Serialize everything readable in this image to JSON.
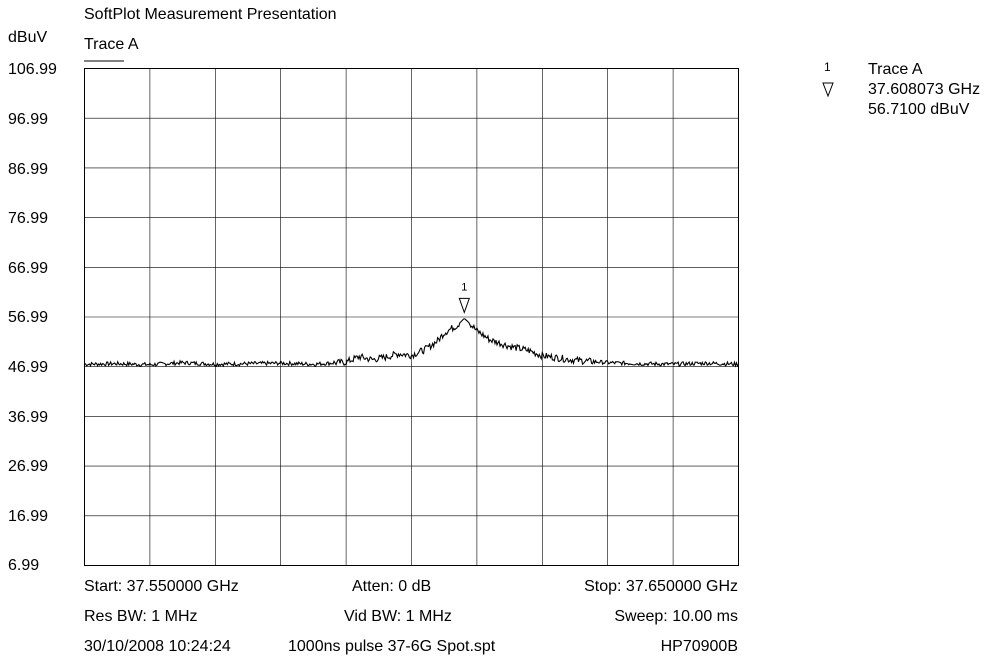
{
  "header": {
    "title": "SoftPlot Measurement Presentation",
    "trace_label": "Trace A",
    "y_unit": "dBuV"
  },
  "marker_panel": {
    "number": "1",
    "trace": "Trace A",
    "frequency": "37.608073 GHz",
    "level": "56.7100 dBuV"
  },
  "footer": {
    "start": "Start: 37.550000 GHz",
    "atten": "Atten: 0 dB",
    "stop": "Stop: 37.650000 GHz",
    "res_bw": "Res BW: 1 MHz",
    "vid_bw": "Vid BW: 1 MHz",
    "sweep": "Sweep: 10.00 ms",
    "datetime": "30/10/2008 10:24:24",
    "file": "1000ns pulse 37-6G Spot.spt",
    "instrument": "HP70900B"
  },
  "chart_data": {
    "type": "line",
    "title": "SoftPlot Measurement Presentation",
    "xlabel": "",
    "ylabel": "dBuV",
    "xlim": [
      37.55,
      37.65
    ],
    "ylim": [
      6.99,
      106.99
    ],
    "grid": true,
    "ytick_labels": [
      "106.99",
      "96.99",
      "86.99",
      "76.99",
      "66.99",
      "56.99",
      "46.99",
      "36.99",
      "26.99",
      "16.99",
      "6.99"
    ],
    "series": [
      {
        "name": "Trace A",
        "x": [
          37.55,
          37.555,
          37.56,
          37.565,
          37.57,
          37.575,
          37.58,
          37.585,
          37.59,
          37.592,
          37.594,
          37.596,
          37.598,
          37.6,
          37.602,
          37.604,
          37.605,
          37.606,
          37.607,
          37.608073,
          37.609,
          37.61,
          37.612,
          37.615,
          37.618,
          37.62,
          37.625,
          37.63,
          37.635,
          37.64,
          37.645,
          37.65
        ],
        "y": [
          47.5,
          47.6,
          47.4,
          47.8,
          47.5,
          47.6,
          47.7,
          47.5,
          47.9,
          49.0,
          48.4,
          48.9,
          49.6,
          49.3,
          50.4,
          52.2,
          53.8,
          54.6,
          55.3,
          56.71,
          55.6,
          54.2,
          52.4,
          51.1,
          50.2,
          49.2,
          48.3,
          47.8,
          47.6,
          47.5,
          47.7,
          47.5
        ]
      }
    ],
    "markers": [
      {
        "label": "1",
        "x": 37.608073,
        "y": 56.71
      }
    ]
  }
}
